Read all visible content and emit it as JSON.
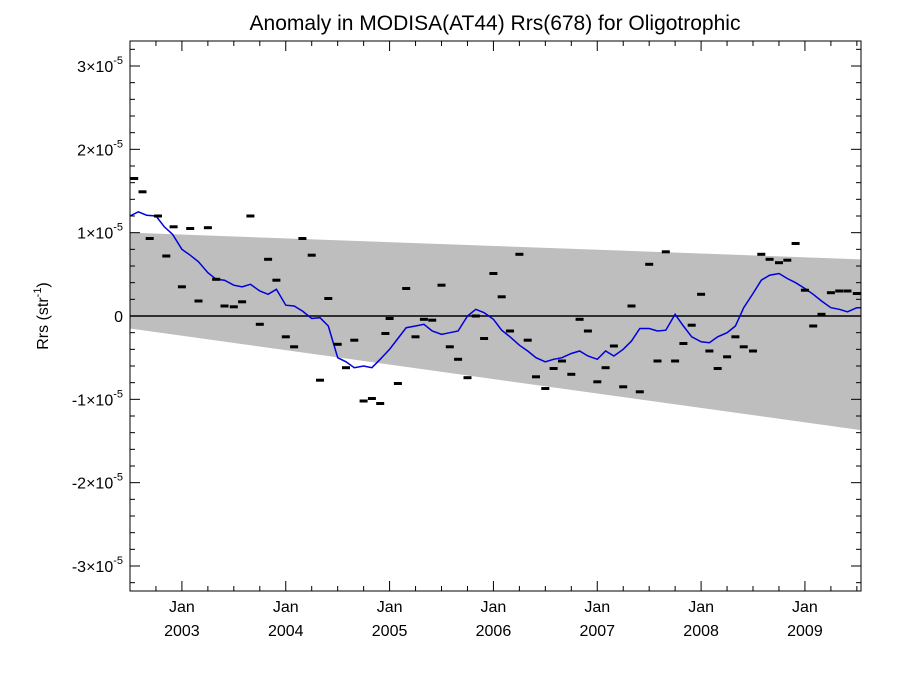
{
  "chart_data": {
    "type": "scatter",
    "title": "Anomaly in MODISA(AT44) Rrs(678) for Oligotrophic",
    "xlabel": "",
    "ylabel": "Rrs (str",
    "ylabel_sup": "-1",
    "ylabel_close": ")",
    "x_unit": "year",
    "xlim": [
      2002.5,
      2009.54
    ],
    "ylim": [
      -3.3e-05,
      3.3e-05
    ],
    "grid": false,
    "colors": {
      "band": "#bebebe",
      "trend": "#0000dd",
      "points": "#000000",
      "zero": "#000000"
    },
    "y_ticks": [
      {
        "value": 3e-05,
        "mant": "3×10",
        "exp": "-5"
      },
      {
        "value": 2e-05,
        "mant": "2×10",
        "exp": "-5"
      },
      {
        "value": 1e-05,
        "mant": "1×10",
        "exp": "-5"
      },
      {
        "value": 0,
        "mant": "0",
        "exp": ""
      },
      {
        "value": -1e-05,
        "mant": "-1×10",
        "exp": "-5"
      },
      {
        "value": -2e-05,
        "mant": "-2×10",
        "exp": "-5"
      },
      {
        "value": -3e-05,
        "mant": "-3×10",
        "exp": "-5"
      }
    ],
    "x_ticks": [
      {
        "value": 2003,
        "month": "Jan",
        "year": "2003"
      },
      {
        "value": 2004,
        "month": "Jan",
        "year": "2004"
      },
      {
        "value": 2005,
        "month": "Jan",
        "year": "2005"
      },
      {
        "value": 2006,
        "month": "Jan",
        "year": "2006"
      },
      {
        "value": 2007,
        "month": "Jan",
        "year": "2007"
      },
      {
        "value": 2008,
        "month": "Jan",
        "year": "2008"
      },
      {
        "value": 2009,
        "month": "Jan",
        "year": "2009"
      }
    ],
    "band": {
      "upper": [
        [
          2002.5,
          1e-05
        ],
        [
          2009.54,
          6.8e-06
        ]
      ],
      "lower": [
        [
          2002.5,
          -1.5e-06
        ],
        [
          2009.54,
          -1.37e-05
        ]
      ]
    },
    "series": [
      {
        "kind": "points",
        "x": [
          2002.54,
          2002.62,
          2002.69,
          2002.77,
          2002.85,
          2002.92,
          2003.0,
          2003.08,
          2003.16,
          2003.25,
          2003.33,
          2003.41,
          2003.5,
          2003.58,
          2003.66,
          2003.75,
          2003.83,
          2003.91,
          2004.0,
          2004.08,
          2004.16,
          2004.25,
          2004.33,
          2004.41,
          2004.5,
          2004.58,
          2004.66,
          2004.75,
          2004.83,
          2004.91,
          2004.96,
          2005.0,
          2005.08,
          2005.16,
          2005.25,
          2005.33,
          2005.41,
          2005.5,
          2005.58,
          2005.66,
          2005.75,
          2005.83,
          2005.91,
          2006.0,
          2006.08,
          2006.16,
          2006.25,
          2006.33,
          2006.41,
          2006.5,
          2006.58,
          2006.66,
          2006.75,
          2006.83,
          2006.91,
          2007.0,
          2007.08,
          2007.16,
          2007.25,
          2007.33,
          2007.41,
          2007.5,
          2007.58,
          2007.66,
          2007.75,
          2007.83,
          2007.91,
          2008.0,
          2008.08,
          2008.16,
          2008.25,
          2008.33,
          2008.41,
          2008.5,
          2008.58,
          2008.66,
          2008.75,
          2008.83,
          2008.91,
          2009.0,
          2009.08,
          2009.16,
          2009.25,
          2009.33,
          2009.41,
          2009.5
        ],
        "y": [
          1.65e-05,
          1.49e-05,
          9.3e-06,
          1.2e-05,
          7.2e-06,
          1.07e-05,
          3.5e-06,
          1.05e-05,
          1.8e-06,
          1.06e-05,
          4.4e-06,
          1.2e-06,
          1.1e-06,
          1.7e-06,
          1.2e-05,
          -1e-06,
          6.8e-06,
          4.3e-06,
          -2.5e-06,
          -3.7e-06,
          9.3e-06,
          7.3e-06,
          -7.7e-06,
          2.1e-06,
          -3.4e-06,
          -6.2e-06,
          -2.9e-06,
          -1.02e-05,
          -9.9e-06,
          -1.05e-05,
          -2.1e-06,
          -3e-07,
          -8.1e-06,
          3.3e-06,
          -2.5e-06,
          -4e-07,
          -5e-07,
          3.7e-06,
          -3.7e-06,
          -5.2e-06,
          -7.4e-06,
          0.0,
          -2.7e-06,
          5.1e-06,
          2.3e-06,
          -1.8e-06,
          7.4e-06,
          -2.9e-06,
          -7.3e-06,
          -8.7e-06,
          -6.3e-06,
          -5.4e-06,
          -7e-06,
          -4e-07,
          -1.8e-06,
          -7.9e-06,
          -6.2e-06,
          -3.6e-06,
          -8.5e-06,
          1.2e-06,
          -9.1e-06,
          6.2e-06,
          -5.4e-06,
          7.7e-06,
          -5.4e-06,
          -3.3e-06,
          -1.1e-06,
          2.6e-06,
          -4.2e-06,
          -6.3e-06,
          -4.9e-06,
          -2.5e-06,
          -3.7e-06,
          -4.2e-06,
          7.4e-06,
          6.8e-06,
          6.4e-06,
          6.7e-06,
          8.7e-06,
          3.1e-06,
          -1.2e-06,
          2e-07,
          2.8e-06,
          3e-06,
          3e-06,
          2.7e-06
        ]
      },
      {
        "kind": "line",
        "x": [
          2002.5,
          2002.58,
          2002.66,
          2002.75,
          2002.83,
          2002.91,
          2003.0,
          2003.08,
          2003.16,
          2003.25,
          2003.33,
          2003.41,
          2003.5,
          2003.58,
          2003.66,
          2003.75,
          2003.83,
          2003.91,
          2004.0,
          2004.08,
          2004.16,
          2004.25,
          2004.33,
          2004.41,
          2004.5,
          2004.58,
          2004.66,
          2004.75,
          2004.83,
          2004.91,
          2005.0,
          2005.08,
          2005.16,
          2005.25,
          2005.33,
          2005.41,
          2005.5,
          2005.58,
          2005.66,
          2005.75,
          2005.83,
          2005.91,
          2006.0,
          2006.08,
          2006.16,
          2006.25,
          2006.33,
          2006.41,
          2006.5,
          2006.58,
          2006.66,
          2006.75,
          2006.83,
          2006.91,
          2007.0,
          2007.08,
          2007.16,
          2007.25,
          2007.33,
          2007.41,
          2007.5,
          2007.58,
          2007.66,
          2007.75,
          2007.83,
          2007.91,
          2008.0,
          2008.08,
          2008.16,
          2008.25,
          2008.33,
          2008.41,
          2008.5,
          2008.58,
          2008.66,
          2008.75,
          2008.83,
          2008.91,
          2009.0,
          2009.08,
          2009.16,
          2009.25,
          2009.33,
          2009.41,
          2009.5,
          2009.54
        ],
        "y": [
          1.2e-05,
          1.25e-05,
          1.21e-05,
          1.2e-05,
          1.07e-05,
          9.8e-06,
          8e-06,
          7.3e-06,
          6.5e-06,
          5.2e-06,
          4.4e-06,
          4.3e-06,
          3.7e-06,
          3.5e-06,
          3.8e-06,
          3e-06,
          2.6e-06,
          3.2e-06,
          1.3e-06,
          1.2e-06,
          6e-07,
          -3e-07,
          -2e-07,
          -1.2e-06,
          -5e-06,
          -5.5e-06,
          -6.2e-06,
          -6e-06,
          -6.2e-06,
          -5.2e-06,
          -4e-06,
          -2.7e-06,
          -1.4e-06,
          -1.2e-06,
          -1e-06,
          -1.8e-06,
          -2.2e-06,
          -2e-06,
          -1.8e-06,
          0.0,
          8e-07,
          4e-07,
          -4e-07,
          -1.7e-06,
          -2.5e-06,
          -3.5e-06,
          -4.2e-06,
          -5e-06,
          -5.5e-06,
          -5.2e-06,
          -5e-06,
          -4.5e-06,
          -4.2e-06,
          -4.8e-06,
          -5.2e-06,
          -4.2e-06,
          -4.8e-06,
          -4e-06,
          -3e-06,
          -1.5e-06,
          -1.5e-06,
          -1.8e-06,
          -1.7e-06,
          2e-07,
          -1.2e-06,
          -2.5e-06,
          -3.1e-06,
          -3.2e-06,
          -2.5e-06,
          -2e-06,
          -1.2e-06,
          1e-06,
          2.7e-06,
          4.3e-06,
          4.9e-06,
          5.1e-06,
          4.5e-06,
          4e-06,
          3.3e-06,
          2.6e-06,
          1.8e-06,
          1e-06,
          8e-07,
          5e-07,
          1e-06,
          1e-06
        ]
      }
    ]
  }
}
